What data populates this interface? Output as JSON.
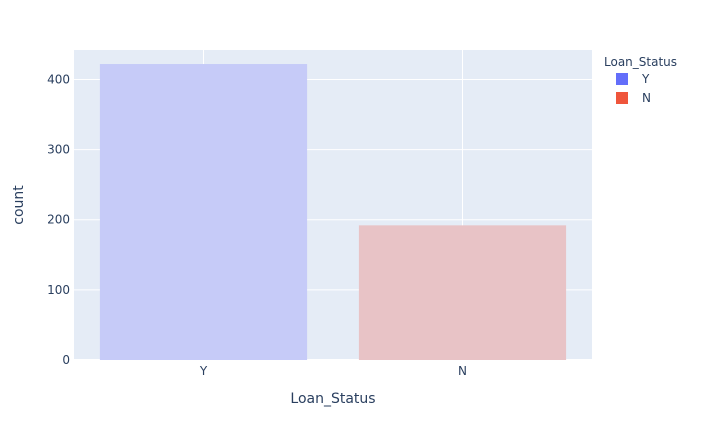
{
  "chart_data": {
    "type": "bar",
    "categories": [
      "Y",
      "N"
    ],
    "values": [
      422,
      192
    ],
    "xlabel": "Loan_Status",
    "ylabel": "count",
    "ylim": [
      0,
      442
    ],
    "yticks": [
      0,
      100,
      200,
      300,
      400
    ],
    "grid": true,
    "legend": {
      "title": "Loan_Status",
      "placement": "top-right",
      "entries": [
        {
          "name": "Y",
          "color": "#636efa"
        },
        {
          "name": "N",
          "color": "#ef553b"
        }
      ]
    },
    "bar_colors": [
      "#c6cbf8",
      "#e8c3c6"
    ],
    "plot_bg": "#e5ecf6"
  }
}
